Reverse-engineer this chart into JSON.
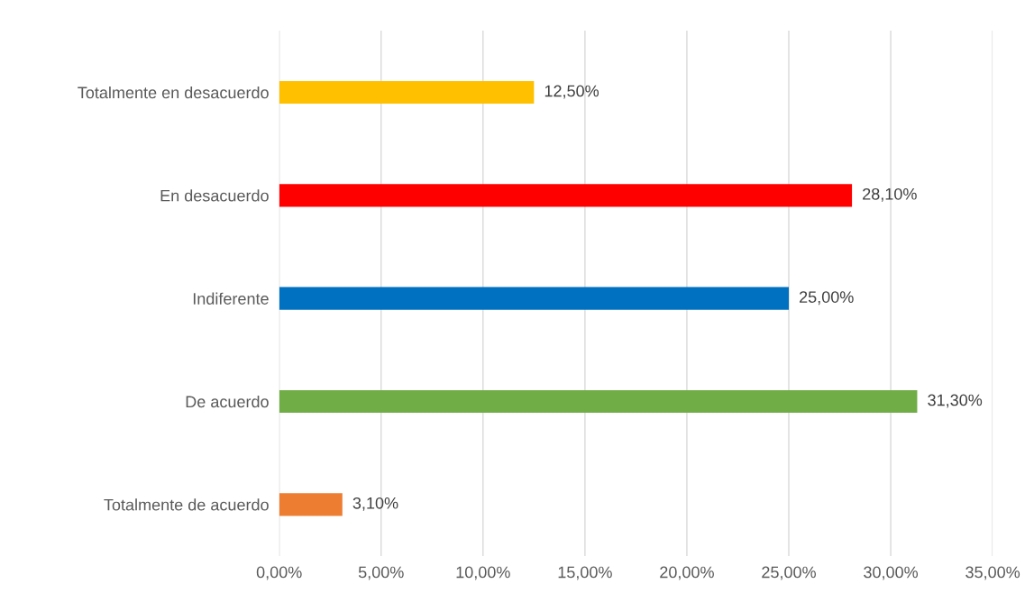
{
  "chart_data": {
    "type": "bar",
    "orientation": "horizontal",
    "categories": [
      "Totalmente en desacuerdo",
      "En desacuerdo",
      "Indiferente",
      "De acuerdo",
      "Totalmente de acuerdo"
    ],
    "values": [
      12.5,
      28.1,
      25.0,
      31.3,
      3.1
    ],
    "colors": [
      "#ffc000",
      "#ff0000",
      "#0070c0",
      "#70ad47",
      "#ed7d31"
    ],
    "value_labels": [
      "12,50%",
      "28,10%",
      "25,00%",
      "31,30%",
      "3,10%"
    ],
    "xlim": [
      0,
      35
    ],
    "xticks": [
      {
        "value": 0,
        "label": "0,00%"
      },
      {
        "value": 5,
        "label": "5,00%"
      },
      {
        "value": 10,
        "label": "10,00%"
      },
      {
        "value": 15,
        "label": "15,00%"
      },
      {
        "value": 20,
        "label": "20,00%"
      },
      {
        "value": 25,
        "label": "25,00%"
      },
      {
        "value": 30,
        "label": "30,00%"
      },
      {
        "value": 35,
        "label": "35,00%"
      }
    ],
    "grid": "x",
    "legend": false
  }
}
